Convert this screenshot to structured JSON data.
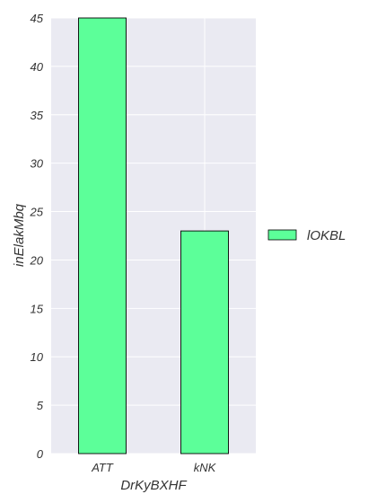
{
  "chart_data": {
    "type": "bar",
    "categories": [
      "ATT",
      "kNK"
    ],
    "series": [
      {
        "name": "lOKBL",
        "values": [
          45,
          23
        ],
        "color": "#5cff99"
      }
    ],
    "xlabel": "DrKyBXHF",
    "ylabel": "inElakMbq",
    "ylim": [
      0,
      45
    ],
    "yticks": [
      0,
      5,
      10,
      15,
      20,
      25,
      30,
      35,
      40,
      45
    ],
    "grid": true,
    "legend": "right",
    "background_color": "#eaeaf2",
    "bar_edge_color": "#000000"
  }
}
